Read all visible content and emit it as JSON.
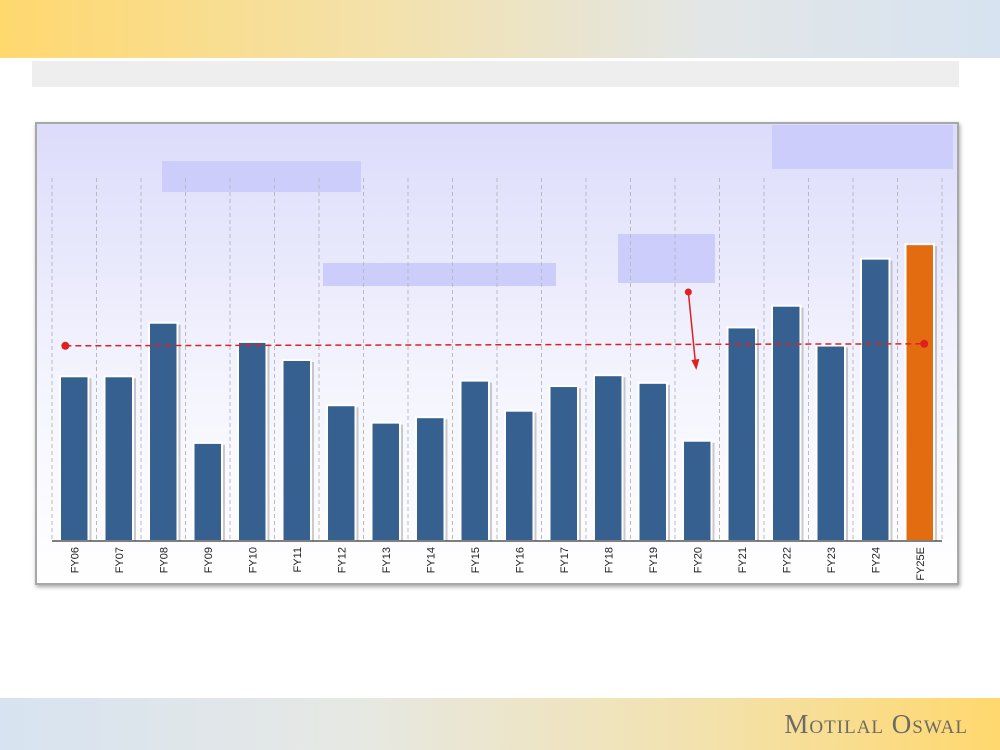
{
  "brand": {
    "name": "Motilal Oswal"
  },
  "colors": {
    "bar": "#35608f",
    "bar_highlight": "#e36c10",
    "avg_line": "#e02020",
    "annotation_box": "#cccdfa"
  },
  "chart_data": {
    "type": "bar",
    "categories": [
      "FY06",
      "FY07",
      "FY08",
      "FY09",
      "FY10",
      "FY11",
      "FY12",
      "FY13",
      "FY14",
      "FY15",
      "FY16",
      "FY17",
      "FY18",
      "FY19",
      "FY20",
      "FY21",
      "FY22",
      "FY23",
      "FY24",
      "FY25E"
    ],
    "values": [
      45.5,
      45.5,
      60.3,
      27.1,
      55.0,
      50.0,
      37.5,
      32.7,
      34.2,
      44.3,
      36.0,
      42.8,
      45.8,
      43.7,
      27.7,
      59.0,
      65.0,
      54.0,
      78.0,
      82.0
    ],
    "highlight_index": 19,
    "average_line": 54.2,
    "ylim": [
      0,
      100
    ],
    "grid": "vertical dashed"
  }
}
